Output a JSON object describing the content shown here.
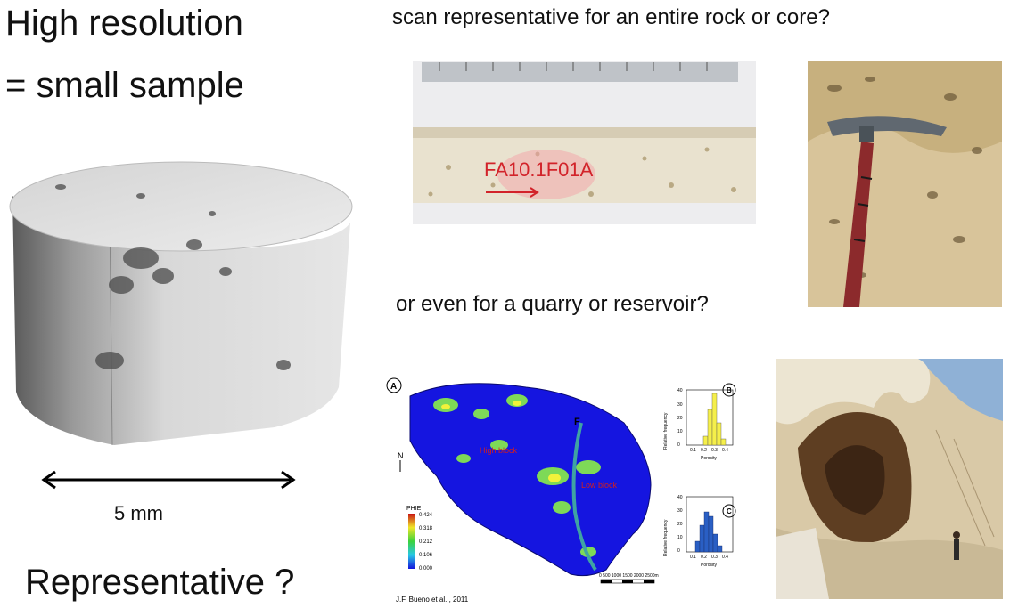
{
  "left": {
    "title_line1": "High resolution",
    "title_line2": "= small sample",
    "scale_label": "5 mm",
    "question": "Representative ?"
  },
  "right": {
    "top_question": "scan representative for an entire rock or core?",
    "mid_question": "or even for a quarry or reservoir?"
  },
  "core_photo": {
    "label": "FA10.1F01A"
  },
  "reservoir_map": {
    "panel_a": "A",
    "panel_b": "B",
    "panel_c": "C",
    "fault_label": "F",
    "north_label": "N",
    "high_block": "High block",
    "low_block": "Low block",
    "colorbar_title": "PHIE",
    "colorbar_ticks": [
      "0.424",
      "0.318",
      "0.212",
      "0.106",
      "0.000"
    ],
    "scale_ticks": "0   500  1000  1500  2000  2500m",
    "hist_ylabel": "Relative frequency",
    "hist_xlabel": "Porosity",
    "hist_b_yticks": [
      "40",
      "30",
      "20",
      "10",
      "0"
    ],
    "hist_c_yticks": [
      "40",
      "30",
      "20",
      "10",
      "0"
    ],
    "hist_xticks": [
      "0.1",
      "0.2",
      "0.3",
      "0.4"
    ],
    "credit": "J.F. Bueno et al. , 2011"
  },
  "colors": {
    "map_blue": "#1515e0",
    "map_green": "#7ed957",
    "map_yellow": "#f2f23a",
    "hist_b_fill": "#f5ef4a",
    "hist_c_fill": "#2a5fc4"
  }
}
